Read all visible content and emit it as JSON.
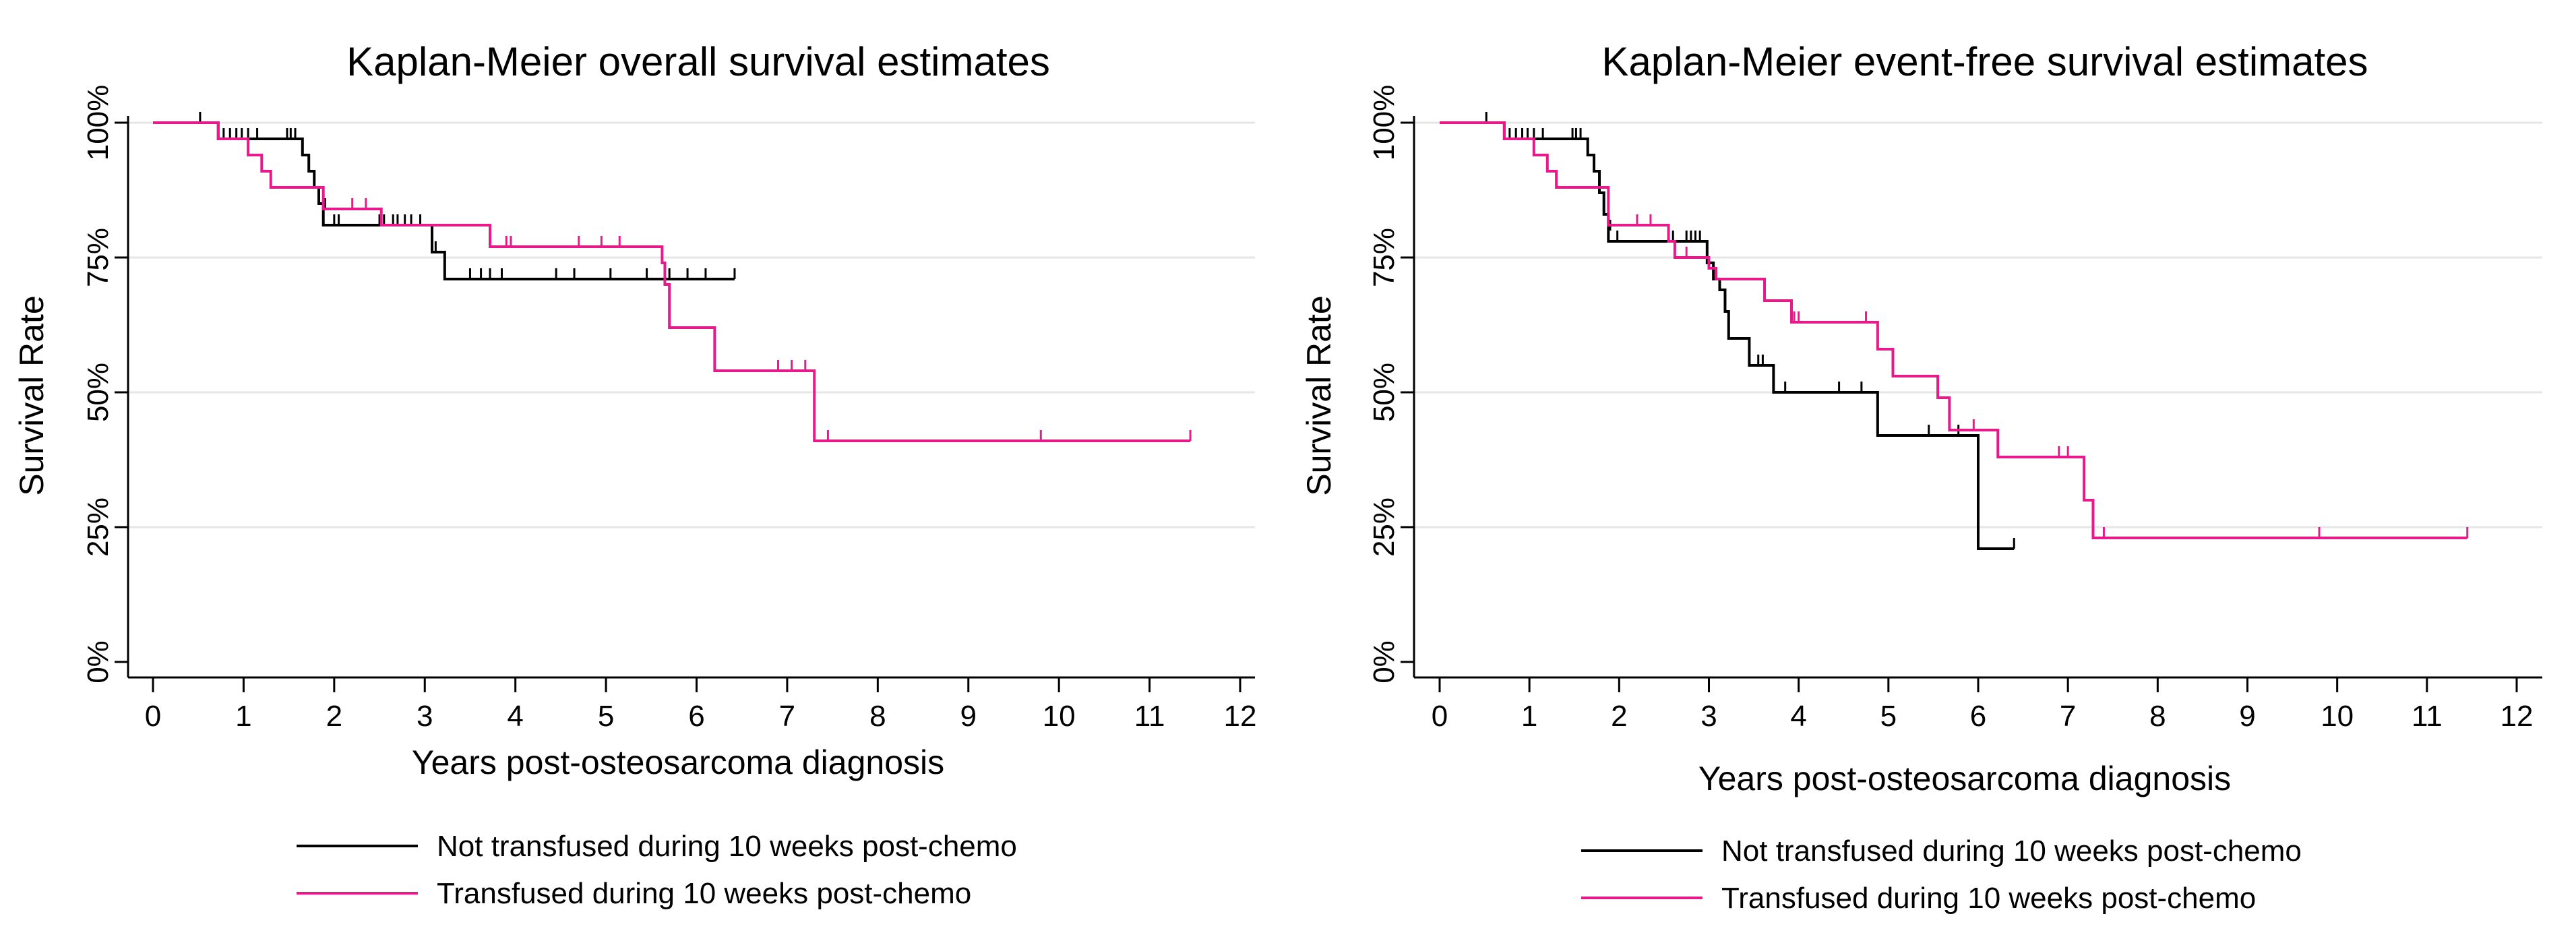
{
  "colors": {
    "black_series": "#000000",
    "magenta_series": "#e8198b",
    "grid": "#e6e6e6",
    "frame": "#e3e3e3"
  },
  "chart_data": [
    {
      "type": "line",
      "title": "Kaplan-Meier overall survival estimates",
      "xlabel": "Years post-osteosarcoma diagnosis",
      "ylabel": "Survival Rate",
      "xlim": [
        0,
        12
      ],
      "ylim": [
        0,
        100
      ],
      "x_ticks": [
        0,
        1,
        2,
        3,
        4,
        5,
        6,
        7,
        8,
        9,
        10,
        11,
        12
      ],
      "y_ticks": [
        0,
        25,
        50,
        75,
        100
      ],
      "y_tick_labels": [
        "0%",
        "25%",
        "50%",
        "75%",
        "100%"
      ],
      "grid": true,
      "legend_position": "bottom",
      "series": [
        {
          "name": "Not transfused during 10 weeks post-chemo",
          "color": "#000000",
          "steps": [
            [
              0,
              100
            ],
            [
              0.72,
              97
            ],
            [
              1.6,
              97
            ],
            [
              1.65,
              94
            ],
            [
              1.72,
              91
            ],
            [
              1.78,
              88
            ],
            [
              1.83,
              85
            ],
            [
              1.88,
              81
            ],
            [
              3.05,
              81
            ],
            [
              3.08,
              76
            ],
            [
              3.22,
              71
            ],
            [
              6.42,
              71
            ]
          ],
          "censored": [
            [
              0.52,
              100
            ],
            [
              0.78,
              97
            ],
            [
              0.85,
              97
            ],
            [
              0.92,
              97
            ],
            [
              0.98,
              97
            ],
            [
              1.05,
              97
            ],
            [
              1.15,
              97
            ],
            [
              1.48,
              97
            ],
            [
              1.52,
              97
            ],
            [
              1.57,
              97
            ],
            [
              1.9,
              84
            ],
            [
              2.0,
              81
            ],
            [
              2.05,
              81
            ],
            [
              2.5,
              81
            ],
            [
              2.55,
              81
            ],
            [
              2.65,
              81
            ],
            [
              2.7,
              81
            ],
            [
              2.78,
              81
            ],
            [
              2.85,
              81
            ],
            [
              2.95,
              81
            ],
            [
              3.12,
              76
            ],
            [
              3.5,
              71
            ],
            [
              3.62,
              71
            ],
            [
              3.72,
              71
            ],
            [
              3.85,
              71
            ],
            [
              4.45,
              71
            ],
            [
              4.65,
              71
            ],
            [
              5.05,
              71
            ],
            [
              5.45,
              71
            ],
            [
              5.7,
              71
            ],
            [
              5.9,
              71
            ],
            [
              6.1,
              71
            ],
            [
              6.42,
              71
            ]
          ]
        },
        {
          "name": "Transfused during 10 weeks post-chemo",
          "color": "#e8198b",
          "steps": [
            [
              0,
              100
            ],
            [
              0.68,
              100
            ],
            [
              0.72,
              97
            ],
            [
              1.0,
              97
            ],
            [
              1.05,
              94
            ],
            [
              1.2,
              91
            ],
            [
              1.3,
              88
            ],
            [
              1.82,
              88
            ],
            [
              1.88,
              84
            ],
            [
              2.5,
              84
            ],
            [
              2.52,
              81
            ],
            [
              3.7,
              81
            ],
            [
              3.72,
              77
            ],
            [
              5.6,
              77
            ],
            [
              5.62,
              74
            ],
            [
              5.65,
              70
            ],
            [
              5.7,
              62
            ],
            [
              6.18,
              62
            ],
            [
              6.2,
              54
            ],
            [
              7.28,
              54
            ],
            [
              7.3,
              41
            ],
            [
              11.45,
              41
            ]
          ],
          "censored": [
            [
              2.2,
              84
            ],
            [
              2.35,
              84
            ],
            [
              3.9,
              77
            ],
            [
              3.95,
              77
            ],
            [
              4.7,
              77
            ],
            [
              4.95,
              77
            ],
            [
              5.15,
              77
            ],
            [
              6.9,
              54
            ],
            [
              7.05,
              54
            ],
            [
              7.2,
              54
            ],
            [
              7.45,
              41
            ],
            [
              9.8,
              41
            ],
            [
              11.45,
              41
            ]
          ]
        }
      ]
    },
    {
      "type": "line",
      "title": "Kaplan-Meier event-free survival estimates",
      "xlabel": "Years post-osteosarcoma diagnosis",
      "ylabel": "Survival Rate",
      "xlim": [
        0,
        12
      ],
      "ylim": [
        0,
        100
      ],
      "x_ticks": [
        0,
        1,
        2,
        3,
        4,
        5,
        6,
        7,
        8,
        9,
        10,
        11,
        12
      ],
      "y_ticks": [
        0,
        25,
        50,
        75,
        100
      ],
      "y_tick_labels": [
        "0%",
        "25%",
        "50%",
        "75%",
        "100%"
      ],
      "grid": true,
      "legend_position": "bottom",
      "series": [
        {
          "name": "Not transfused during 10 weeks post-chemo",
          "color": "#000000",
          "steps": [
            [
              0,
              100
            ],
            [
              0.72,
              97
            ],
            [
              1.6,
              97
            ],
            [
              1.65,
              94
            ],
            [
              1.72,
              91
            ],
            [
              1.78,
              87
            ],
            [
              1.83,
              83
            ],
            [
              1.88,
              78
            ],
            [
              2.95,
              78
            ],
            [
              2.98,
              74
            ],
            [
              3.05,
              71
            ],
            [
              3.12,
              69
            ],
            [
              3.18,
              65
            ],
            [
              3.22,
              60
            ],
            [
              3.42,
              60
            ],
            [
              3.45,
              55
            ],
            [
              3.7,
              55
            ],
            [
              3.72,
              50
            ],
            [
              4.85,
              50
            ],
            [
              4.88,
              42
            ],
            [
              5.98,
              42
            ],
            [
              6.0,
              21
            ],
            [
              6.4,
              21
            ]
          ],
          "censored": [
            [
              0.52,
              100
            ],
            [
              0.78,
              97
            ],
            [
              0.85,
              97
            ],
            [
              0.92,
              97
            ],
            [
              0.98,
              97
            ],
            [
              1.05,
              97
            ],
            [
              1.15,
              97
            ],
            [
              1.48,
              97
            ],
            [
              1.52,
              97
            ],
            [
              1.57,
              97
            ],
            [
              1.9,
              80
            ],
            [
              1.98,
              78
            ],
            [
              2.6,
              78
            ],
            [
              2.75,
              78
            ],
            [
              2.8,
              78
            ],
            [
              2.85,
              78
            ],
            [
              2.9,
              78
            ],
            [
              3.55,
              55
            ],
            [
              3.6,
              55
            ],
            [
              3.85,
              50
            ],
            [
              4.45,
              50
            ],
            [
              4.7,
              50
            ],
            [
              5.45,
              42
            ],
            [
              5.78,
              42
            ],
            [
              6.4,
              21
            ]
          ]
        },
        {
          "name": "Transfused during 10 weeks post-chemo",
          "color": "#e8198b",
          "steps": [
            [
              0,
              100
            ],
            [
              0.68,
              100
            ],
            [
              0.72,
              97
            ],
            [
              1.0,
              97
            ],
            [
              1.05,
              94
            ],
            [
              1.2,
              91
            ],
            [
              1.3,
              88
            ],
            [
              1.82,
              88
            ],
            [
              1.88,
              81
            ],
            [
              2.5,
              81
            ],
            [
              2.55,
              78
            ],
            [
              2.62,
              75
            ],
            [
              2.95,
              75
            ],
            [
              3.0,
              73
            ],
            [
              3.08,
              71
            ],
            [
              3.6,
              71
            ],
            [
              3.62,
              67
            ],
            [
              3.9,
              67
            ],
            [
              3.92,
              63
            ],
            [
              4.85,
              63
            ],
            [
              4.88,
              58
            ],
            [
              5.02,
              58
            ],
            [
              5.05,
              53
            ],
            [
              5.5,
              53
            ],
            [
              5.55,
              49
            ],
            [
              5.65,
              49
            ],
            [
              5.68,
              43
            ],
            [
              6.2,
              43
            ],
            [
              6.22,
              38
            ],
            [
              7.15,
              38
            ],
            [
              7.18,
              30
            ],
            [
              7.25,
              30
            ],
            [
              7.28,
              23
            ],
            [
              11.45,
              23
            ]
          ],
          "censored": [
            [
              2.2,
              81
            ],
            [
              2.35,
              81
            ],
            [
              2.75,
              75
            ],
            [
              3.95,
              63
            ],
            [
              4.0,
              63
            ],
            [
              4.75,
              63
            ],
            [
              5.95,
              43
            ],
            [
              6.9,
              38
            ],
            [
              7.0,
              38
            ],
            [
              7.4,
              23
            ],
            [
              9.8,
              23
            ],
            [
              11.45,
              23
            ]
          ]
        }
      ]
    }
  ]
}
